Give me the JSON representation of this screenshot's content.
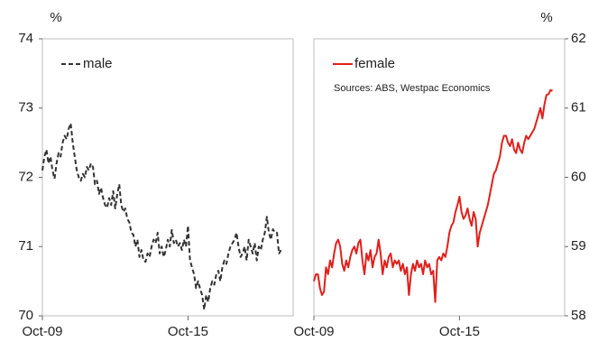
{
  "chart_data": [
    {
      "type": "line",
      "ylabel": "%",
      "axis_side": "left",
      "x": [
        "Oct-09",
        "Nov-09",
        "Dec-09",
        "Jan-10",
        "Feb-10",
        "Mar-10",
        "Apr-10",
        "May-10",
        "Jun-10",
        "Jul-10",
        "Aug-10",
        "Sep-10",
        "Oct-10",
        "Nov-10",
        "Dec-10",
        "Jan-11",
        "Feb-11",
        "Mar-11",
        "Apr-11",
        "May-11",
        "Jun-11",
        "Jul-11",
        "Aug-11",
        "Sep-11",
        "Oct-11",
        "Nov-11",
        "Dec-11",
        "Jan-12",
        "Feb-12",
        "Mar-12",
        "Apr-12",
        "May-12",
        "Jun-12",
        "Jul-12",
        "Aug-12",
        "Sep-12",
        "Oct-12",
        "Nov-12",
        "Dec-12",
        "Jan-13",
        "Feb-13",
        "Mar-13",
        "Apr-13",
        "May-13",
        "Jun-13",
        "Jul-13",
        "Aug-13",
        "Sep-13",
        "Oct-13",
        "Nov-13",
        "Dec-13",
        "Jan-14",
        "Feb-14",
        "Mar-14",
        "Apr-14",
        "May-14",
        "Jun-14",
        "Jul-14",
        "Aug-14",
        "Sep-14",
        "Oct-14",
        "Nov-14",
        "Dec-14",
        "Jan-15",
        "Feb-15",
        "Mar-15",
        "Apr-15",
        "May-15",
        "Jun-15",
        "Jul-15",
        "Aug-15",
        "Sep-15",
        "Oct-15",
        "Nov-15",
        "Dec-15",
        "Jan-16",
        "Feb-16",
        "Mar-16",
        "Apr-16",
        "May-16",
        "Jun-16",
        "Jul-16",
        "Aug-16",
        "Sep-16",
        "Oct-16",
        "Nov-16",
        "Dec-16",
        "Jan-17",
        "Feb-17",
        "Mar-17",
        "Apr-17",
        "May-17",
        "Jun-17",
        "Jul-17",
        "Aug-17",
        "Sep-17",
        "Oct-17",
        "Nov-17",
        "Dec-17",
        "Jan-18",
        "Feb-18",
        "Mar-18",
        "Apr-18",
        "May-18",
        "Jun-18",
        "Jul-18",
        "Aug-18",
        "Sep-18",
        "Oct-18",
        "Nov-18",
        "Dec-18",
        "Jan-19",
        "Feb-19",
        "Mar-19",
        "Apr-19",
        "May-19",
        "Jun-19",
        "Jul-19",
        "Aug-19"
      ],
      "series": [
        {
          "name": "male",
          "color": "#333333",
          "dashed": true,
          "values": [
            72.1,
            72.3,
            72.4,
            72.2,
            72.3,
            72.1,
            71.98,
            72.2,
            72.35,
            72.3,
            72.5,
            72.6,
            72.55,
            72.7,
            72.78,
            72.5,
            72.3,
            72.1,
            72.0,
            71.95,
            72.05,
            72.0,
            72.15,
            72.1,
            72.2,
            72.15,
            71.9,
            71.95,
            71.76,
            71.85,
            71.7,
            71.6,
            71.56,
            71.7,
            71.6,
            71.8,
            71.55,
            71.75,
            71.9,
            71.6,
            71.5,
            71.55,
            71.4,
            71.35,
            71.2,
            71.17,
            71.0,
            71.1,
            70.85,
            70.95,
            70.8,
            70.78,
            70.9,
            70.85,
            71.0,
            71.1,
            71.05,
            71.2,
            70.9,
            71.0,
            70.85,
            70.95,
            71.1,
            71.0,
            71.24,
            71.05,
            71.1,
            71.0,
            71.05,
            70.95,
            71.1,
            71.0,
            71.3,
            70.8,
            70.7,
            70.6,
            70.4,
            70.5,
            70.39,
            70.3,
            70.09,
            70.3,
            70.2,
            70.4,
            70.5,
            70.45,
            70.6,
            70.65,
            70.5,
            70.7,
            70.8,
            70.75,
            70.9,
            71.0,
            71.05,
            71.1,
            71.2,
            71.0,
            70.85,
            70.9,
            71.0,
            70.8,
            71.1,
            71.0,
            70.9,
            71.05,
            70.8,
            71.0,
            70.95,
            71.1,
            71.2,
            71.43,
            71.2,
            71.1,
            71.25,
            71.2,
            71.2,
            70.9,
            70.95
          ]
        }
      ],
      "xlim": [
        "Oct-09",
        "Feb-20"
      ],
      "xticks": [
        "Oct-09",
        "Oct-15"
      ],
      "ylim": [
        70,
        74
      ],
      "yticks": [
        70,
        71,
        72,
        73,
        74
      ]
    },
    {
      "type": "line",
      "ylabel": "%",
      "axis_side": "right",
      "annotation": "Sources: ABS, Westpac Economics",
      "x": [
        "Oct-09",
        "Nov-09",
        "Dec-09",
        "Jan-10",
        "Feb-10",
        "Mar-10",
        "Apr-10",
        "May-10",
        "Jun-10",
        "Jul-10",
        "Aug-10",
        "Sep-10",
        "Oct-10",
        "Nov-10",
        "Dec-10",
        "Jan-11",
        "Feb-11",
        "Mar-11",
        "Apr-11",
        "May-11",
        "Jun-11",
        "Jul-11",
        "Aug-11",
        "Sep-11",
        "Oct-11",
        "Nov-11",
        "Dec-11",
        "Jan-12",
        "Feb-12",
        "Mar-12",
        "Apr-12",
        "May-12",
        "Jun-12",
        "Jul-12",
        "Aug-12",
        "Sep-12",
        "Oct-12",
        "Nov-12",
        "Dec-12",
        "Jan-13",
        "Feb-13",
        "Mar-13",
        "Apr-13",
        "May-13",
        "Jun-13",
        "Jul-13",
        "Aug-13",
        "Sep-13",
        "Oct-13",
        "Nov-13",
        "Dec-13",
        "Jan-14",
        "Feb-14",
        "Mar-14",
        "Apr-14",
        "May-14",
        "Jun-14",
        "Jul-14",
        "Aug-14",
        "Sep-14",
        "Oct-14",
        "Nov-14",
        "Dec-14",
        "Jan-15",
        "Feb-15",
        "Mar-15",
        "Apr-15",
        "May-15",
        "Jun-15",
        "Jul-15",
        "Aug-15",
        "Sep-15",
        "Oct-15",
        "Nov-15",
        "Dec-15",
        "Jan-16",
        "Feb-16",
        "Mar-16",
        "Apr-16",
        "May-16",
        "Jun-16",
        "Jul-16",
        "Aug-16",
        "Sep-16",
        "Oct-16",
        "Nov-16",
        "Dec-16",
        "Jan-17",
        "Feb-17",
        "Mar-17",
        "Apr-17",
        "May-17",
        "Jun-17",
        "Jul-17",
        "Aug-17",
        "Sep-17",
        "Oct-17",
        "Nov-17",
        "Dec-17",
        "Jan-18",
        "Feb-18",
        "Mar-18",
        "Apr-18",
        "May-18",
        "Jun-18",
        "Jul-18",
        "Aug-18",
        "Sep-18",
        "Oct-18",
        "Nov-18",
        "Dec-18",
        "Jan-19",
        "Feb-19",
        "Mar-19",
        "Apr-19",
        "May-19",
        "Jun-19",
        "Jul-19",
        "Aug-19"
      ],
      "series": [
        {
          "name": "female",
          "color": "#e0201b",
          "dashed": false,
          "values": [
            58.5,
            58.6,
            58.6,
            58.4,
            58.3,
            58.35,
            58.7,
            58.6,
            58.8,
            58.7,
            58.9,
            59.05,
            59.1,
            59.0,
            58.75,
            58.65,
            58.8,
            58.7,
            58.85,
            58.95,
            59.0,
            58.9,
            59.05,
            59.1,
            58.8,
            58.6,
            58.9,
            58.8,
            58.95,
            58.7,
            58.85,
            58.9,
            59.1,
            58.9,
            58.6,
            58.8,
            58.7,
            58.85,
            58.9,
            58.7,
            58.8,
            58.75,
            58.8,
            58.65,
            58.75,
            58.6,
            58.7,
            58.3,
            58.6,
            58.75,
            58.65,
            58.8,
            58.7,
            58.75,
            58.6,
            58.8,
            58.7,
            58.75,
            58.6,
            58.65,
            58.2,
            58.8,
            58.85,
            58.8,
            58.9,
            58.85,
            59.0,
            59.2,
            59.3,
            59.35,
            59.5,
            59.6,
            59.72,
            59.5,
            59.4,
            59.45,
            59.55,
            59.4,
            59.3,
            59.5,
            59.4,
            59.0,
            59.2,
            59.3,
            59.4,
            59.5,
            59.6,
            59.75,
            59.9,
            60.05,
            60.1,
            60.2,
            60.3,
            60.5,
            60.6,
            60.6,
            60.5,
            60.45,
            60.55,
            60.4,
            60.35,
            60.5,
            60.4,
            60.35,
            60.5,
            60.6,
            60.55,
            60.6,
            60.65,
            60.7,
            60.8,
            60.9,
            61.0,
            60.85,
            61.05,
            61.19,
            61.2,
            61.26,
            61.25
          ]
        }
      ],
      "xlim": [
        "Oct-09",
        "Feb-20"
      ],
      "xticks": [
        "Oct-09",
        "Oct-15"
      ],
      "ylim": [
        58,
        62
      ],
      "yticks": [
        58,
        59,
        60,
        61,
        62
      ]
    }
  ]
}
